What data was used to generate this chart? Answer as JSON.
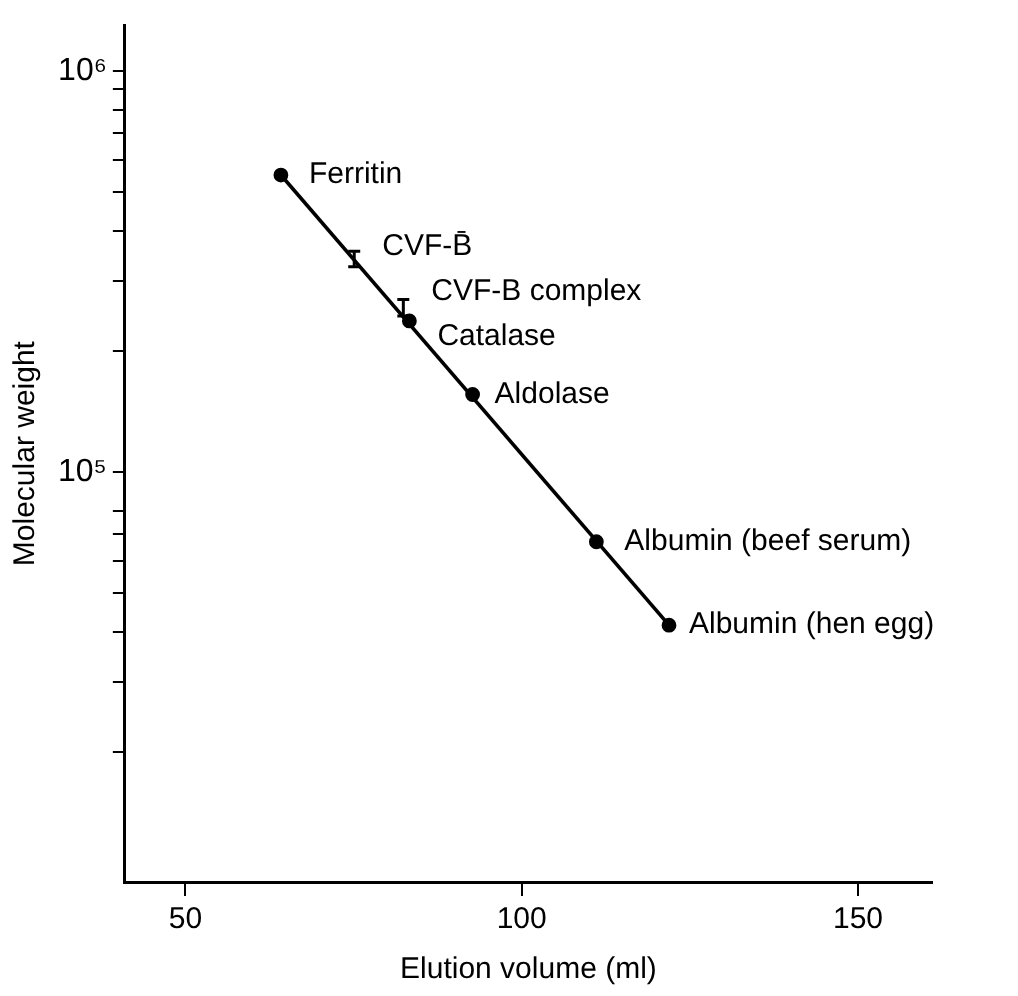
{
  "chart_data": {
    "type": "scatter",
    "xlabel": "Elution volume (ml)",
    "ylabel": "Molecular weight",
    "log": "y",
    "grid": false,
    "legend": false,
    "xlim": [
      41,
      161
    ],
    "xticks": [
      50,
      100,
      150
    ],
    "ylim": [
      9500,
      1300000
    ],
    "yticks": [
      {
        "value": 20000,
        "label": null
      },
      {
        "value": 30000,
        "label": null
      },
      {
        "value": 40000,
        "label": null
      },
      {
        "value": 50000,
        "label": null
      },
      {
        "value": 60000,
        "label": null
      },
      {
        "value": 70000,
        "label": null
      },
      {
        "value": 80000,
        "label": null
      },
      {
        "value": 100000,
        "label": "10⁵"
      },
      {
        "value": 200000,
        "label": null
      },
      {
        "value": 300000,
        "label": null
      },
      {
        "value": 400000,
        "label": null
      },
      {
        "value": 500000,
        "label": null
      },
      {
        "value": 600000,
        "label": null
      },
      {
        "value": 700000,
        "label": null
      },
      {
        "value": 800000,
        "label": null
      },
      {
        "value": 900000,
        "label": null
      },
      {
        "value": 1000000,
        "label": "10⁶"
      }
    ],
    "series": [
      {
        "color": "#000000",
        "marker": "circle",
        "x": [
          64.2,
          83.3,
          92.7,
          111.1,
          121.9
        ],
        "values": [
          550000,
          238000,
          156000,
          67000,
          41500
        ]
      },
      {
        "color": "#000000",
        "x": [
          75.1,
          82.4
        ],
        "values": [
          340000,
          257000
        ],
        "errors": [
          15000,
          12000
        ]
      },
      {
        "type": "line",
        "color": "#000000",
        "marker": "none",
        "line_style": "solid",
        "x": [
          64.2,
          121.9
        ],
        "values": [
          550000,
          41500
        ]
      }
    ],
    "annotations": [
      {
        "text": "Ferritin",
        "x": 64.2,
        "y": 550000
      },
      {
        "text": "CVF-B̄",
        "x": 75.1,
        "y": 340000
      },
      {
        "text": "CVF-B complex",
        "x": 82.4,
        "y": 257000
      },
      {
        "text": "Catalase",
        "x": 83.3,
        "y": 238000
      },
      {
        "text": "Aldolase",
        "x": 92.7,
        "y": 156000
      },
      {
        "text": "Albumin (beef serum)",
        "x": 111.1,
        "y": 67000
      },
      {
        "text": "Albumin (hen egg)",
        "x": 121.9,
        "y": 41500
      }
    ]
  }
}
